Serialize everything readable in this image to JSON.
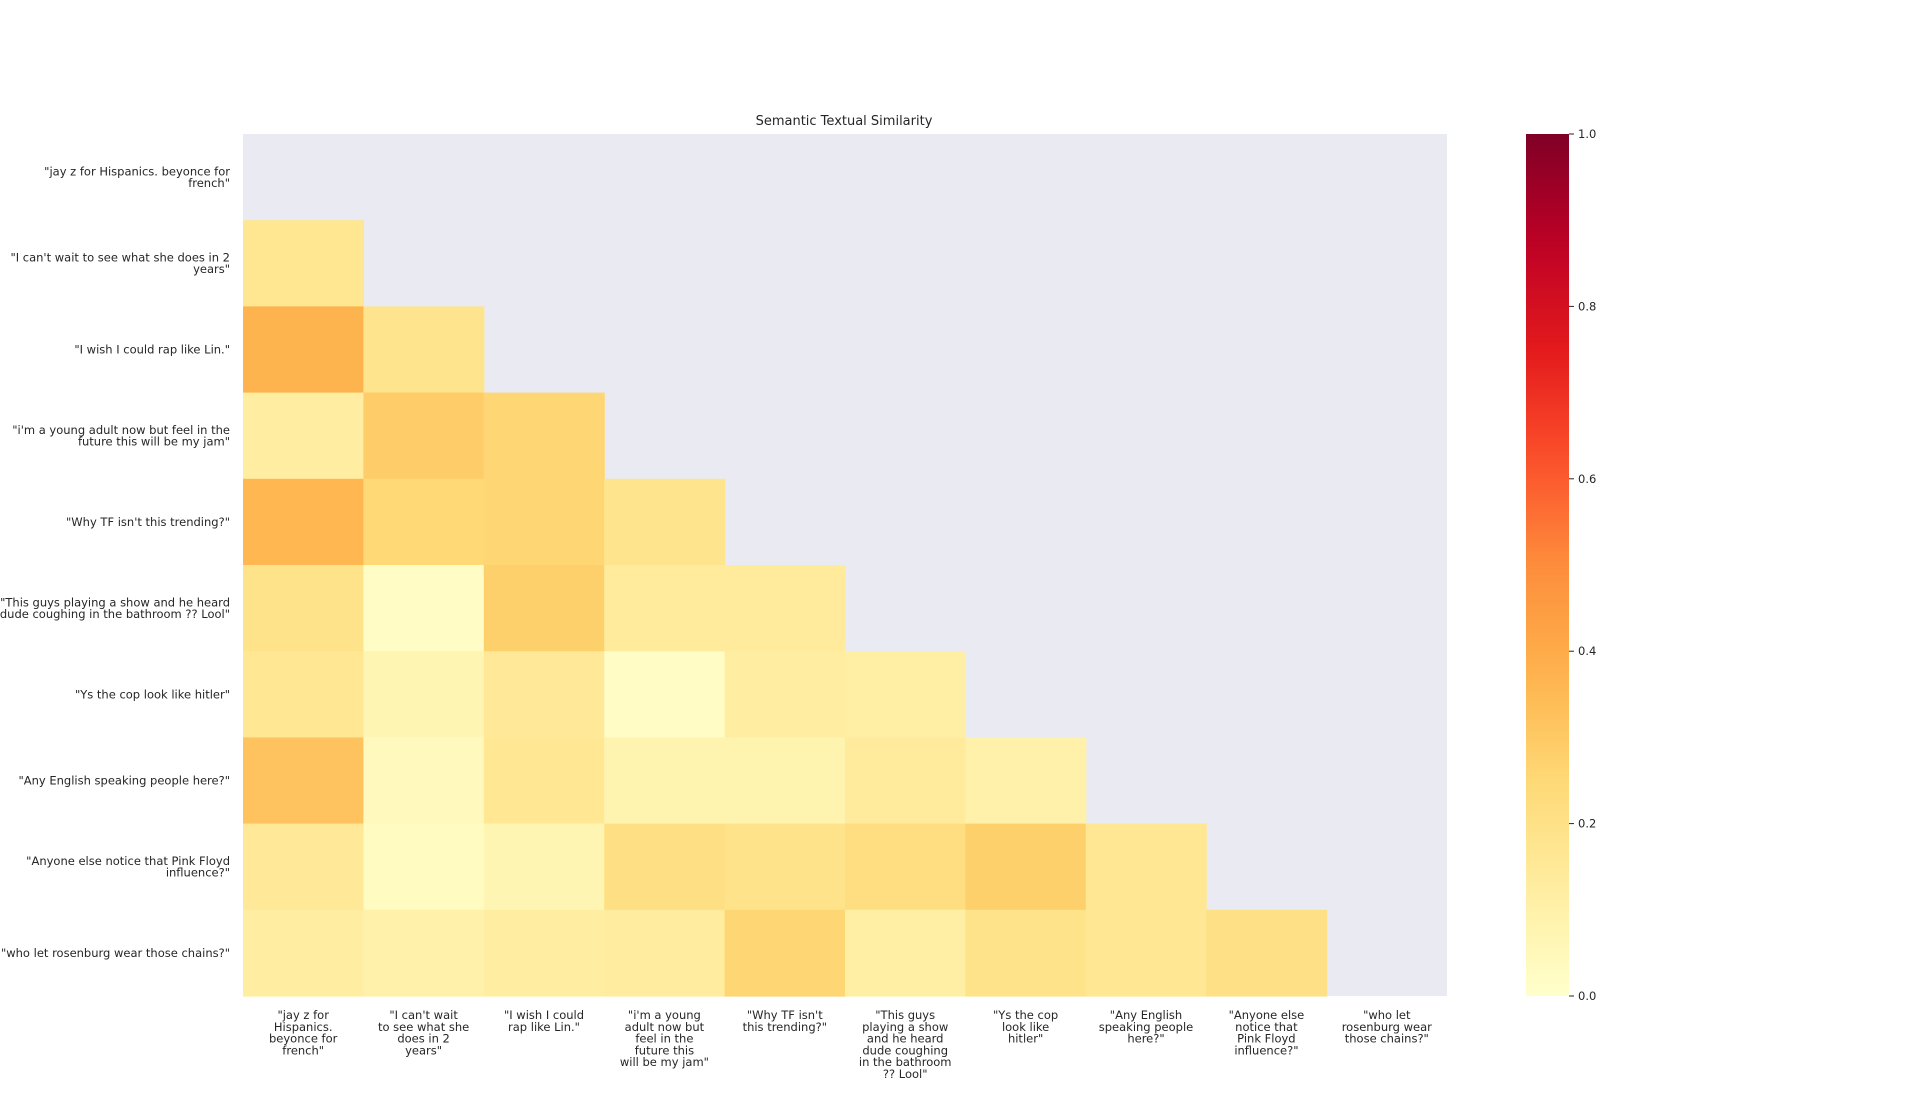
{
  "chart_data": {
    "type": "heatmap",
    "title": "Semantic Textual Similarity",
    "xlabel": "",
    "ylabel": "",
    "mask": "upper triangle including diagonal",
    "row_labels": [
      [
        "\"jay z for Hispanics. beyonce for",
        "french\""
      ],
      [
        "\"I can't wait to see what she does in 2",
        "years\""
      ],
      [
        "\"I wish I could rap like Lin.\""
      ],
      [
        "\"i'm a young adult now but  feel in the",
        "future this will be my jam\""
      ],
      [
        "\"Why TF isn't this trending?\""
      ],
      [
        "\"This guys playing a show and he heard",
        "dude coughing in the bathroom ?? Lool\""
      ],
      [
        "\"Ys the cop look like hitler\""
      ],
      [
        "\"Any English speaking people here?\""
      ],
      [
        "\"Anyone else notice that Pink Floyd",
        "influence?\""
      ],
      [
        "\"who let rosenburg wear those chains?\""
      ]
    ],
    "col_labels": [
      [
        "\"jay z for",
        "Hispanics.",
        "beyonce for",
        "french\""
      ],
      [
        "\"I can't wait",
        "to see what she",
        "does in 2",
        "years\""
      ],
      [
        "\"I wish I could",
        "rap like Lin.\""
      ],
      [
        "\"i'm a young",
        "adult now but",
        "feel in the",
        "future this",
        "will be my jam\""
      ],
      [
        "\"Why TF isn't",
        "this trending?\""
      ],
      [
        "\"This guys",
        "playing a show",
        "and he heard",
        "dude coughing",
        "in the bathroom",
        "?? Lool\""
      ],
      [
        "\"Ys the cop",
        "look like",
        "hitler\""
      ],
      [
        "\"Any English",
        "speaking people",
        "here?\""
      ],
      [
        "\"Anyone else",
        "notice that",
        "Pink Floyd",
        "influence?\""
      ],
      [
        "\"who let",
        "rosenburg wear",
        "those chains?\""
      ]
    ],
    "values": [
      [
        null,
        null,
        null,
        null,
        null,
        null,
        null,
        null,
        null,
        null
      ],
      [
        0.17,
        null,
        null,
        null,
        null,
        null,
        null,
        null,
        null,
        null
      ],
      [
        0.37,
        0.18,
        null,
        null,
        null,
        null,
        null,
        null,
        null,
        null
      ],
      [
        0.12,
        0.29,
        0.26,
        null,
        null,
        null,
        null,
        null,
        null,
        null
      ],
      [
        0.36,
        0.25,
        0.26,
        0.18,
        null,
        null,
        null,
        null,
        null,
        null
      ],
      [
        0.19,
        0.02,
        0.28,
        0.14,
        0.14,
        null,
        null,
        null,
        null,
        null
      ],
      [
        0.16,
        0.07,
        0.15,
        0.02,
        0.12,
        0.11,
        null,
        null,
        null,
        null
      ],
      [
        0.32,
        0.04,
        0.16,
        0.08,
        0.08,
        0.14,
        0.1,
        null,
        null,
        null
      ],
      [
        0.15,
        0.03,
        0.07,
        0.21,
        0.19,
        0.22,
        0.28,
        0.16,
        null,
        null
      ],
      [
        0.12,
        0.1,
        0.12,
        0.13,
        0.26,
        0.11,
        0.19,
        0.16,
        0.2,
        null
      ]
    ],
    "colorbar": {
      "colormap": "YlOrRd",
      "range": [
        0.0,
        1.0
      ],
      "ticks": [
        0.0,
        0.2,
        0.4,
        0.6,
        0.8,
        1.0
      ],
      "tick_labels": [
        "0.0",
        "0.2",
        "0.4",
        "0.6",
        "0.8",
        "1.0"
      ]
    },
    "background_color": "#eaeaf2",
    "grid": false
  }
}
